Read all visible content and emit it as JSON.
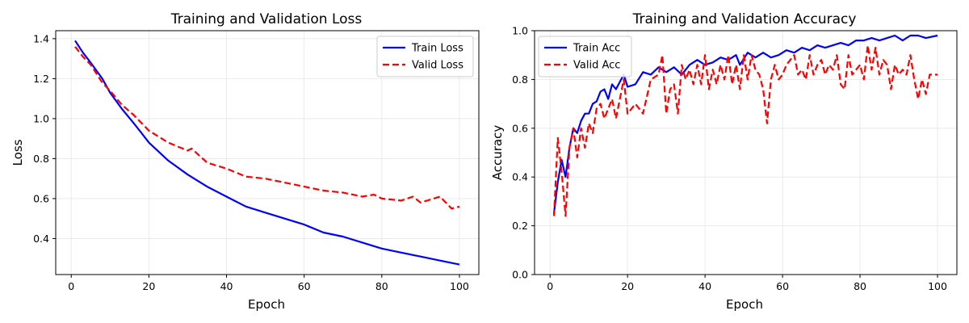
{
  "colors": {
    "train": "#0000ff",
    "valid": "#ff0000",
    "grid": "#e6e6e6",
    "axis": "#000000"
  },
  "chart_data": [
    {
      "type": "line",
      "title": "Training and Validation Loss",
      "xlabel": "Epoch",
      "ylabel": "Loss",
      "xlim": [
        -4,
        105
      ],
      "ylim": [
        0.22,
        1.44
      ],
      "xticks": [
        0,
        20,
        40,
        60,
        80,
        100
      ],
      "yticks": [
        0.4,
        0.6,
        0.8,
        1.0,
        1.2,
        1.4
      ],
      "ytick_labels": [
        "0.4",
        "0.6",
        "0.8",
        "1.0",
        "1.2",
        "1.4"
      ],
      "grid": true,
      "legend_position": "top-right",
      "series": [
        {
          "name": "Train Loss",
          "style": "solid",
          "color": "#0000ff",
          "keypoints": [
            [
              1,
              1.39
            ],
            [
              3,
              1.33
            ],
            [
              5,
              1.28
            ],
            [
              8,
              1.2
            ],
            [
              10,
              1.13
            ],
            [
              13,
              1.05
            ],
            [
              16,
              0.98
            ],
            [
              18,
              0.93
            ],
            [
              20,
              0.88
            ],
            [
              25,
              0.79
            ],
            [
              30,
              0.72
            ],
            [
              35,
              0.66
            ],
            [
              40,
              0.61
            ],
            [
              45,
              0.56
            ],
            [
              50,
              0.53
            ],
            [
              55,
              0.5
            ],
            [
              60,
              0.47
            ],
            [
              65,
              0.43
            ],
            [
              70,
              0.41
            ],
            [
              75,
              0.38
            ],
            [
              80,
              0.35
            ],
            [
              85,
              0.33
            ],
            [
              90,
              0.31
            ],
            [
              95,
              0.29
            ],
            [
              100,
              0.27
            ]
          ]
        },
        {
          "name": "Valid Loss",
          "style": "dashed",
          "color": "#ff0000",
          "keypoints": [
            [
              1,
              1.36
            ],
            [
              3,
              1.31
            ],
            [
              5,
              1.27
            ],
            [
              8,
              1.18
            ],
            [
              10,
              1.14
            ],
            [
              13,
              1.07
            ],
            [
              16,
              1.02
            ],
            [
              20,
              0.94
            ],
            [
              25,
              0.88
            ],
            [
              30,
              0.84
            ],
            [
              31,
              0.85
            ],
            [
              35,
              0.78
            ],
            [
              40,
              0.75
            ],
            [
              45,
              0.71
            ],
            [
              50,
              0.7
            ],
            [
              55,
              0.68
            ],
            [
              60,
              0.66
            ],
            [
              65,
              0.64
            ],
            [
              70,
              0.63
            ],
            [
              75,
              0.61
            ],
            [
              78,
              0.62
            ],
            [
              80,
              0.6
            ],
            [
              85,
              0.59
            ],
            [
              88,
              0.61
            ],
            [
              90,
              0.58
            ],
            [
              95,
              0.61
            ],
            [
              98,
              0.55
            ],
            [
              100,
              0.56
            ]
          ]
        }
      ]
    },
    {
      "type": "line",
      "title": "Training and Validation Accuracy",
      "xlabel": "Epoch",
      "ylabel": "Accuracy",
      "xlim": [
        -4,
        105
      ],
      "ylim": [
        0.0,
        1.0
      ],
      "xticks": [
        0,
        20,
        40,
        60,
        80,
        100
      ],
      "yticks": [
        0.0,
        0.2,
        0.4,
        0.6,
        0.8,
        1.0
      ],
      "ytick_labels": [
        "0.0",
        "0.2",
        "0.4",
        "0.6",
        "0.8",
        "1.0"
      ],
      "grid": true,
      "legend_position": "top-left",
      "series": [
        {
          "name": "Train Acc",
          "style": "solid",
          "color": "#0000ff",
          "keypoints": [
            [
              1,
              0.25
            ],
            [
              2,
              0.38
            ],
            [
              3,
              0.47
            ],
            [
              4,
              0.4
            ],
            [
              5,
              0.52
            ],
            [
              6,
              0.6
            ],
            [
              7,
              0.58
            ],
            [
              8,
              0.63
            ],
            [
              9,
              0.66
            ],
            [
              10,
              0.66
            ],
            [
              11,
              0.7
            ],
            [
              12,
              0.71
            ],
            [
              13,
              0.75
            ],
            [
              14,
              0.76
            ],
            [
              15,
              0.72
            ],
            [
              16,
              0.78
            ],
            [
              17,
              0.76
            ],
            [
              18,
              0.79
            ],
            [
              19,
              0.82
            ],
            [
              20,
              0.77
            ],
            [
              22,
              0.78
            ],
            [
              24,
              0.83
            ],
            [
              26,
              0.82
            ],
            [
              28,
              0.85
            ],
            [
              30,
              0.83
            ],
            [
              32,
              0.85
            ],
            [
              34,
              0.82
            ],
            [
              36,
              0.86
            ],
            [
              38,
              0.88
            ],
            [
              40,
              0.86
            ],
            [
              42,
              0.87
            ],
            [
              44,
              0.89
            ],
            [
              46,
              0.88
            ],
            [
              48,
              0.9
            ],
            [
              49,
              0.86
            ],
            [
              51,
              0.91
            ],
            [
              53,
              0.89
            ],
            [
              55,
              0.91
            ],
            [
              57,
              0.89
            ],
            [
              59,
              0.9
            ],
            [
              61,
              0.92
            ],
            [
              63,
              0.91
            ],
            [
              65,
              0.93
            ],
            [
              67,
              0.92
            ],
            [
              69,
              0.94
            ],
            [
              71,
              0.93
            ],
            [
              73,
              0.94
            ],
            [
              75,
              0.95
            ],
            [
              77,
              0.94
            ],
            [
              79,
              0.96
            ],
            [
              81,
              0.96
            ],
            [
              83,
              0.97
            ],
            [
              85,
              0.96
            ],
            [
              87,
              0.97
            ],
            [
              89,
              0.98
            ],
            [
              91,
              0.96
            ],
            [
              93,
              0.98
            ],
            [
              95,
              0.98
            ],
            [
              97,
              0.97
            ],
            [
              100,
              0.98
            ]
          ]
        },
        {
          "name": "Valid Acc",
          "style": "dashed",
          "color": "#ff0000",
          "keypoints": [
            [
              1,
              0.24
            ],
            [
              2,
              0.56
            ],
            [
              3,
              0.42
            ],
            [
              4,
              0.24
            ],
            [
              5,
              0.52
            ],
            [
              6,
              0.6
            ],
            [
              7,
              0.48
            ],
            [
              8,
              0.6
            ],
            [
              9,
              0.52
            ],
            [
              10,
              0.62
            ],
            [
              11,
              0.58
            ],
            [
              12,
              0.68
            ],
            [
              13,
              0.7
            ],
            [
              14,
              0.64
            ],
            [
              15,
              0.68
            ],
            [
              16,
              0.72
            ],
            [
              17,
              0.64
            ],
            [
              18,
              0.72
            ],
            [
              19,
              0.8
            ],
            [
              20,
              0.66
            ],
            [
              22,
              0.7
            ],
            [
              24,
              0.66
            ],
            [
              26,
              0.8
            ],
            [
              28,
              0.82
            ],
            [
              29,
              0.9
            ],
            [
              30,
              0.66
            ],
            [
              31,
              0.76
            ],
            [
              32,
              0.78
            ],
            [
              33,
              0.66
            ],
            [
              34,
              0.86
            ],
            [
              35,
              0.8
            ],
            [
              36,
              0.84
            ],
            [
              37,
              0.78
            ],
            [
              38,
              0.86
            ],
            [
              39,
              0.78
            ],
            [
              40,
              0.9
            ],
            [
              41,
              0.76
            ],
            [
              42,
              0.84
            ],
            [
              43,
              0.78
            ],
            [
              44,
              0.86
            ],
            [
              45,
              0.8
            ],
            [
              46,
              0.9
            ],
            [
              47,
              0.78
            ],
            [
              48,
              0.86
            ],
            [
              49,
              0.76
            ],
            [
              50,
              0.9
            ],
            [
              51,
              0.8
            ],
            [
              52,
              0.9
            ],
            [
              53,
              0.84
            ],
            [
              54,
              0.82
            ],
            [
              55,
              0.76
            ],
            [
              56,
              0.62
            ],
            [
              57,
              0.8
            ],
            [
              58,
              0.86
            ],
            [
              59,
              0.8
            ],
            [
              60,
              0.82
            ],
            [
              61,
              0.86
            ],
            [
              62,
              0.88
            ],
            [
              63,
              0.9
            ],
            [
              64,
              0.82
            ],
            [
              65,
              0.84
            ],
            [
              66,
              0.8
            ],
            [
              67,
              0.9
            ],
            [
              68,
              0.82
            ],
            [
              69,
              0.86
            ],
            [
              70,
              0.88
            ],
            [
              71,
              0.82
            ],
            [
              72,
              0.86
            ],
            [
              73,
              0.84
            ],
            [
              74,
              0.9
            ],
            [
              75,
              0.78
            ],
            [
              76,
              0.76
            ],
            [
              77,
              0.9
            ],
            [
              78,
              0.82
            ],
            [
              79,
              0.84
            ],
            [
              80,
              0.86
            ],
            [
              81,
              0.8
            ],
            [
              82,
              0.94
            ],
            [
              83,
              0.84
            ],
            [
              84,
              0.93
            ],
            [
              85,
              0.82
            ],
            [
              86,
              0.88
            ],
            [
              87,
              0.86
            ],
            [
              88,
              0.76
            ],
            [
              89,
              0.86
            ],
            [
              90,
              0.82
            ],
            [
              91,
              0.84
            ],
            [
              92,
              0.82
            ],
            [
              93,
              0.9
            ],
            [
              94,
              0.8
            ],
            [
              95,
              0.72
            ],
            [
              96,
              0.8
            ],
            [
              97,
              0.74
            ],
            [
              98,
              0.82
            ],
            [
              100,
              0.82
            ]
          ]
        }
      ]
    }
  ]
}
